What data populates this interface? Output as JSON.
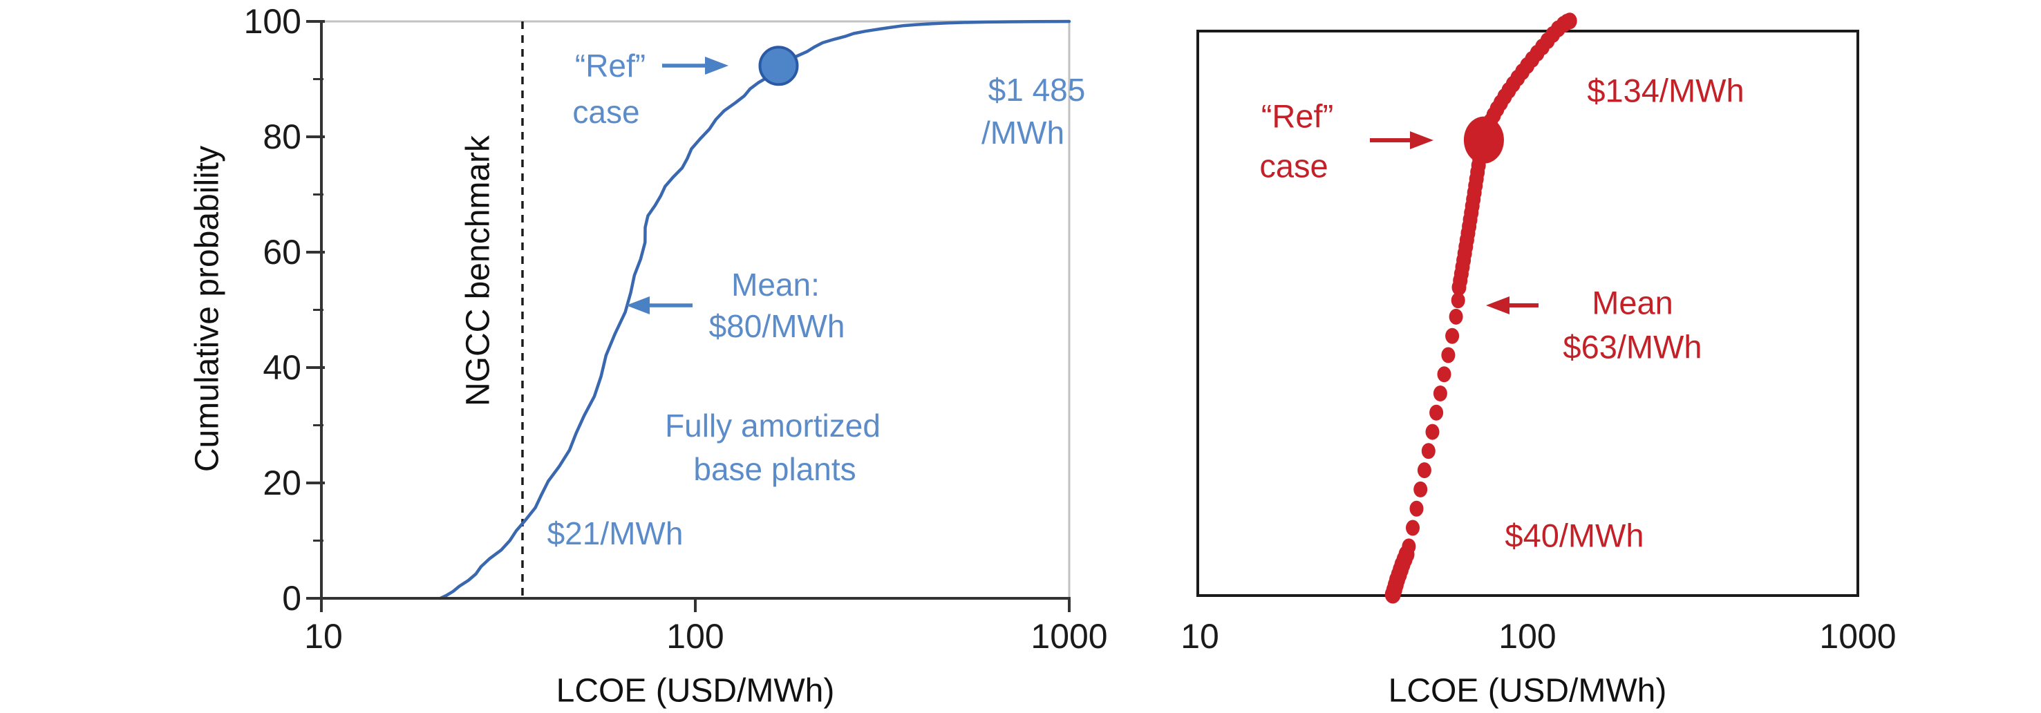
{
  "colors": {
    "blue_curve": "#3a68b0",
    "blue_dot_fill": "#4e84c8",
    "blue_dot_stroke": "#2a5aa5",
    "blue_arrow": "#4a80c4",
    "blue_text": "#5b8cc9",
    "red": "#c32127",
    "red_dot": "#cb2027",
    "axis_dark": "#333333",
    "axis_light": "#c2c2c2",
    "benchmark_line": "#1a1a1a"
  },
  "left_chart": {
    "y_axis_title": "Cumulative probability",
    "x_axis_title": "LCOE (USD/MWh)",
    "y_tick_labels": [
      "0",
      "20",
      "40",
      "60",
      "80",
      "100"
    ],
    "x_tick_labels": [
      "10",
      "100",
      "1000"
    ],
    "benchmark_label": "NGCC benchmark",
    "annotations": {
      "ref_line1": "“Ref”",
      "ref_line2": "case",
      "max_line1": "$1 485",
      "max_line2": "/MWh",
      "mean_line1": "Mean:",
      "mean_line2": "$80/MWh",
      "note_line1": "Fully amortized",
      "note_line2": "base plants",
      "min_label": "$21/MWh"
    }
  },
  "right_chart": {
    "x_axis_title": "LCOE (USD/MWh)",
    "x_tick_labels": [
      "10",
      "100",
      "1000"
    ],
    "annotations": {
      "ref_line1": "“Ref”",
      "ref_line2": "case",
      "max_label": "$134/MWh",
      "mean_line1": "Mean",
      "mean_line2": "$63/MWh",
      "min_label": "$40/MWh"
    }
  },
  "chart_data": [
    {
      "type": "line",
      "name": "fully-amortized-base-plants-cdf",
      "xlabel": "LCOE (USD/MWh)",
      "ylabel": "Cumulative probability",
      "x_scale": "log",
      "xlim": [
        10,
        1000
      ],
      "ylim": [
        0,
        100
      ],
      "x_ticks": [
        10,
        100,
        1000
      ],
      "y_ticks": [
        0,
        20,
        40,
        60,
        80,
        100
      ],
      "y_minor_ticks": [
        10,
        30,
        50,
        70,
        90
      ],
      "grid": false,
      "benchmark": {
        "label": "NGCC benchmark",
        "value": 34.5,
        "style": "dashed"
      },
      "ref_case": {
        "value": 167,
        "prob": 92.3
      },
      "min_value_label": "$21/MWh",
      "max_value_label": "$1 485/MWh",
      "mean_label": "Mean: $80/MWh",
      "series_label": "Fully amortized base plants",
      "points": [
        [
          20.8,
          0
        ],
        [
          21.6,
          0.5
        ],
        [
          22.5,
          1.2
        ],
        [
          23.5,
          2.1
        ],
        [
          24.6,
          3.1
        ],
        [
          25.8,
          4.2
        ],
        [
          27.1,
          5.5
        ],
        [
          28.5,
          6.9
        ],
        [
          30.0,
          8.4
        ],
        [
          31.6,
          10.0
        ],
        [
          33.3,
          11.7
        ],
        [
          35.1,
          13.6
        ],
        [
          37.0,
          15.7
        ],
        [
          39.0,
          17.9
        ],
        [
          41.1,
          20.3
        ],
        [
          43.3,
          22.9
        ],
        [
          45.6,
          25.7
        ],
        [
          48.0,
          28.6
        ],
        [
          50.5,
          31.7
        ],
        [
          53.1,
          35.0
        ],
        [
          55.8,
          38.5
        ],
        [
          58.6,
          42.1
        ],
        [
          61.5,
          45.8
        ],
        [
          64.5,
          49.6
        ],
        [
          67.0,
          53.0
        ],
        [
          69.0,
          56.0
        ],
        [
          70.8,
          58.8
        ],
        [
          72.5,
          61.7
        ],
        [
          74.0,
          64.3
        ],
        [
          75.8,
          66.3
        ],
        [
          78.0,
          68.1
        ],
        [
          80.5,
          69.8
        ],
        [
          83.5,
          71.4
        ],
        [
          87.0,
          73.0
        ],
        [
          90.8,
          74.6
        ],
        [
          94.8,
          76.2
        ],
        [
          99.0,
          77.9
        ],
        [
          103.5,
          79.6
        ],
        [
          108.5,
          81.3
        ],
        [
          114.0,
          83.0
        ],
        [
          120.0,
          84.5
        ],
        [
          126.5,
          85.9
        ],
        [
          133.5,
          87.1
        ],
        [
          141.0,
          88.3
        ],
        [
          149.0,
          89.4
        ],
        [
          157.5,
          90.5
        ],
        [
          166.0,
          91.7
        ],
        [
          175.0,
          92.9
        ],
        [
          185.0,
          93.9
        ],
        [
          196.0,
          94.8
        ],
        [
          208.0,
          95.6
        ],
        [
          221.0,
          96.3
        ],
        [
          235.0,
          96.9
        ],
        [
          251.0,
          97.4
        ],
        [
          268.0,
          97.9
        ],
        [
          287.0,
          98.3
        ],
        [
          308.0,
          98.7
        ],
        [
          332.0,
          99.0
        ],
        [
          360.0,
          99.25
        ],
        [
          392.0,
          99.45
        ],
        [
          430.0,
          99.6
        ],
        [
          475.0,
          99.72
        ],
        [
          530.0,
          99.82
        ],
        [
          600.0,
          99.89
        ],
        [
          690.0,
          99.94
        ],
        [
          800.0,
          99.97
        ],
        [
          930.0,
          99.99
        ],
        [
          1000.0,
          100.0
        ]
      ]
    },
    {
      "type": "scatter",
      "name": "red-lcoe-cdf",
      "xlabel": "LCOE (USD/MWh)",
      "x_scale": "log",
      "xlim": [
        10,
        1000
      ],
      "ylim": [
        0,
        100
      ],
      "x_ticks": [
        10,
        100,
        1000
      ],
      "grid": false,
      "ref_case": {
        "value": 73.6,
        "prob": 80.7
      },
      "min_value_label": "$40/MWh",
      "max_value_label": "$134/MWh",
      "mean_label": "Mean $63/MWh",
      "points": [
        [
          39.0,
          0.2,
          11.5
        ],
        [
          39.4,
          1.0,
          11.5
        ],
        [
          39.8,
          1.9,
          11.5
        ],
        [
          40.2,
          2.8,
          11.5
        ],
        [
          40.7,
          3.7,
          11.5
        ],
        [
          41.2,
          4.6,
          11.5
        ],
        [
          41.7,
          5.5,
          11.5
        ],
        [
          42.3,
          6.4,
          11.5
        ],
        [
          42.9,
          7.3,
          11.5
        ],
        [
          43.6,
          8.7,
          10
        ],
        [
          44.8,
          12.0,
          10
        ],
        [
          46.0,
          15.4,
          10
        ],
        [
          47.3,
          18.8,
          10
        ],
        [
          48.6,
          22.2,
          10
        ],
        [
          50.0,
          25.6,
          10
        ],
        [
          51.4,
          29.0,
          10
        ],
        [
          52.8,
          32.4,
          10
        ],
        [
          54.3,
          35.8,
          10
        ],
        [
          55.8,
          39.2,
          10
        ],
        [
          57.4,
          42.6,
          10
        ],
        [
          59.0,
          46.0,
          10
        ],
        [
          60.6,
          49.4,
          10
        ],
        [
          61.5,
          52.3,
          10
        ],
        [
          61.9,
          54.6,
          10.5
        ],
        [
          62.4,
          55.8,
          10.5
        ],
        [
          62.9,
          57.0,
          10.5
        ],
        [
          63.4,
          58.2,
          10.5
        ],
        [
          63.9,
          59.4,
          10.5
        ],
        [
          64.4,
          60.6,
          10.5
        ],
        [
          64.9,
          61.8,
          10.5
        ],
        [
          65.4,
          63.0,
          10.5
        ],
        [
          65.9,
          64.2,
          10.5
        ],
        [
          66.4,
          65.4,
          10.5
        ],
        [
          66.9,
          66.6,
          10.5
        ],
        [
          67.4,
          67.8,
          10.5
        ],
        [
          67.9,
          69.0,
          10.5
        ],
        [
          68.4,
          70.2,
          10.5
        ],
        [
          68.9,
          71.4,
          10.5
        ],
        [
          69.4,
          72.6,
          10.5
        ],
        [
          69.9,
          73.8,
          10.5
        ],
        [
          70.4,
          75.0,
          10.5
        ],
        [
          70.9,
          76.2,
          10.5
        ],
        [
          71.4,
          77.4,
          10.5
        ],
        [
          71.9,
          78.6,
          10.5
        ],
        [
          72.4,
          79.8,
          10.5
        ],
        [
          74.3,
          81.8,
          10.5
        ],
        [
          75.6,
          82.9,
          10.5
        ],
        [
          77.1,
          84.0,
          10.5
        ],
        [
          78.8,
          85.1,
          10.5
        ],
        [
          80.7,
          86.2,
          10.5
        ],
        [
          82.8,
          87.3,
          10.5
        ],
        [
          85.1,
          88.4,
          10.5
        ],
        [
          87.6,
          89.5,
          10.5
        ],
        [
          90.3,
          90.6,
          10.5
        ],
        [
          93.2,
          91.7,
          10.5
        ],
        [
          96.3,
          92.8,
          10.5
        ],
        [
          99.6,
          93.9,
          10.5
        ],
        [
          103.1,
          95.0,
          10.5
        ],
        [
          106.8,
          96.1,
          10.5
        ],
        [
          110.7,
          97.2,
          10.5
        ],
        [
          114.8,
          98.3,
          10.5
        ],
        [
          119.1,
          99.4,
          10.5
        ],
        [
          123.6,
          100.4,
          10.5
        ],
        [
          128.3,
          101.2,
          10.5
        ],
        [
          131.5,
          101.6,
          10.5
        ],
        [
          134.0,
          101.8,
          10.5
        ]
      ]
    }
  ]
}
